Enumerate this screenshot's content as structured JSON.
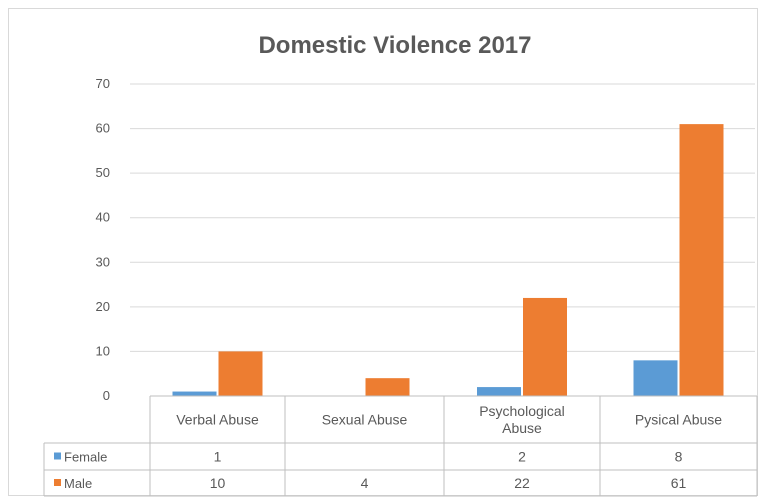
{
  "chart_data": {
    "type": "bar",
    "title": "Domestic Violence 2017",
    "categories": [
      "Verbal Abuse",
      "Sexual Abuse",
      "Psychological Abuse",
      "Pysical Abuse"
    ],
    "category_lines": [
      [
        "Verbal Abuse"
      ],
      [
        "Sexual Abuse"
      ],
      [
        "Psychological",
        "Abuse"
      ],
      [
        "Pysical Abuse"
      ]
    ],
    "series": [
      {
        "name": "Female",
        "values": [
          1,
          null,
          2,
          8
        ],
        "labels": [
          "1",
          "",
          "2",
          "8"
        ],
        "color": "#5b9bd5"
      },
      {
        "name": "Male",
        "values": [
          10,
          4,
          22,
          61
        ],
        "labels": [
          "10",
          "4",
          "22",
          "61"
        ],
        "color": "#ed7d31"
      }
    ],
    "ylim": [
      0,
      70
    ],
    "yticks": [
      0,
      10,
      20,
      30,
      40,
      50,
      60,
      70
    ],
    "grid": true,
    "legend": "data-table",
    "xlabel": "",
    "ylabel": ""
  }
}
